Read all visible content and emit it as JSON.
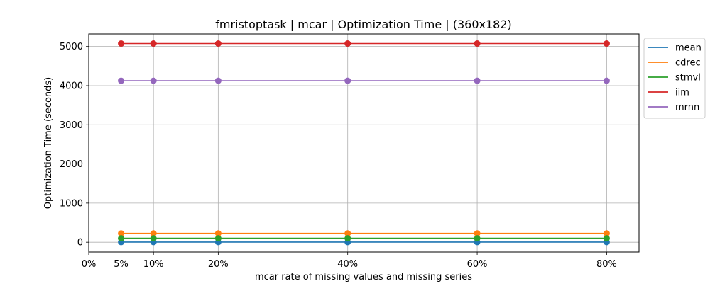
{
  "chart_data": {
    "type": "line",
    "title": "fmristoptask | mcar | Optimization Time | (360x182)",
    "xlabel": "mcar rate of missing values and missing series",
    "ylabel": "Optimization Time (seconds)",
    "x": [
      5,
      10,
      20,
      40,
      60,
      80
    ],
    "x_ticks": [
      0,
      5,
      10,
      20,
      40,
      60,
      80
    ],
    "x_tick_labels": [
      "0%",
      "5%",
      "10%",
      "20%",
      "40%",
      "60%",
      "80%"
    ],
    "xlim": [
      0,
      85
    ],
    "y_ticks": [
      0,
      1000,
      2000,
      3000,
      4000,
      5000
    ],
    "y_tick_labels": [
      "0",
      "1000",
      "2000",
      "3000",
      "4000",
      "5000"
    ],
    "ylim": [
      -250,
      5320
    ],
    "grid": true,
    "legend_position": "outside-right",
    "series": [
      {
        "name": "mean",
        "color": "#1f77b4",
        "values": [
          5,
          5,
          5,
          5,
          5,
          5
        ]
      },
      {
        "name": "cdrec",
        "color": "#ff7f0e",
        "values": [
          225,
          225,
          225,
          225,
          225,
          225
        ]
      },
      {
        "name": "stmvl",
        "color": "#2ca02c",
        "values": [
          100,
          100,
          100,
          100,
          100,
          100
        ]
      },
      {
        "name": "iim",
        "color": "#d62728",
        "values": [
          5075,
          5075,
          5075,
          5075,
          5075,
          5075
        ]
      },
      {
        "name": "mrnn",
        "color": "#9467bd",
        "values": [
          4125,
          4125,
          4125,
          4125,
          4125,
          4125
        ]
      }
    ]
  }
}
